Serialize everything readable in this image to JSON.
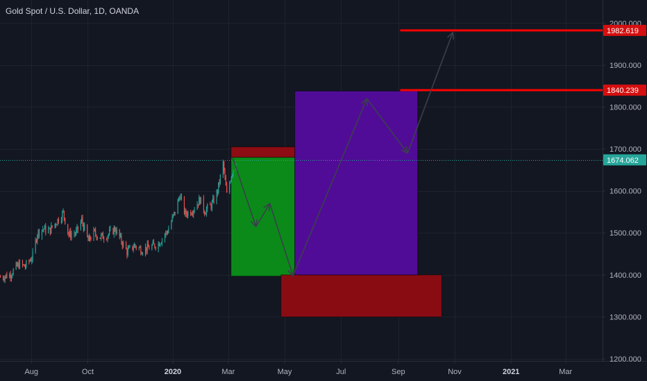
{
  "chart_data": {
    "type": "candlestick",
    "title": "Gold Spot / U.S. Dollar, 1D, OANDA",
    "ylim": [
      1195,
      2055
    ],
    "y_ticks": [
      {
        "value": 1200,
        "label": "1200.000"
      },
      {
        "value": 1300,
        "label": "1300.000"
      },
      {
        "value": 1400,
        "label": "1400.000"
      },
      {
        "value": 1500,
        "label": "1500.000"
      },
      {
        "value": 1600,
        "label": "1600.000"
      },
      {
        "value": 1700,
        "label": "1700.000"
      },
      {
        "value": 1800,
        "label": "1800.000"
      },
      {
        "value": 1900,
        "label": "1900.000"
      },
      {
        "value": 2000,
        "label": "2000.000"
      }
    ],
    "x_range": [
      "2019-06-28",
      "2021-04-10"
    ],
    "x_ticks": [
      {
        "date": "2019-08-01",
        "label": "Aug",
        "bold": false
      },
      {
        "date": "2019-10-01",
        "label": "Oct",
        "bold": false
      },
      {
        "date": "2020-01-01",
        "label": "2020",
        "bold": true
      },
      {
        "date": "2020-03-01",
        "label": "Mar",
        "bold": false
      },
      {
        "date": "2020-05-01",
        "label": "May",
        "bold": false
      },
      {
        "date": "2020-07-01",
        "label": "Jul",
        "bold": false
      },
      {
        "date": "2020-09-01",
        "label": "Sep",
        "bold": false
      },
      {
        "date": "2020-11-01",
        "label": "Nov",
        "bold": false
      },
      {
        "date": "2021-01-01",
        "label": "2021",
        "bold": true
      },
      {
        "date": "2021-03-01",
        "label": "Mar",
        "bold": false
      }
    ],
    "price_path": [
      [
        "2019-06-28",
        1395
      ],
      [
        "2019-07-08",
        1400
      ],
      [
        "2019-07-18",
        1425
      ],
      [
        "2019-07-25",
        1420
      ],
      [
        "2019-08-02",
        1445
      ],
      [
        "2019-08-07",
        1500
      ],
      [
        "2019-08-13",
        1510
      ],
      [
        "2019-08-20",
        1505
      ],
      [
        "2019-08-27",
        1525
      ],
      [
        "2019-09-04",
        1548
      ],
      [
        "2019-09-10",
        1495
      ],
      [
        "2019-09-18",
        1500
      ],
      [
        "2019-09-24",
        1530
      ],
      [
        "2019-10-01",
        1480
      ],
      [
        "2019-10-07",
        1500
      ],
      [
        "2019-10-14",
        1490
      ],
      [
        "2019-10-22",
        1495
      ],
      [
        "2019-10-30",
        1510
      ],
      [
        "2019-11-05",
        1485
      ],
      [
        "2019-11-12",
        1455
      ],
      [
        "2019-11-20",
        1470
      ],
      [
        "2019-11-28",
        1460
      ],
      [
        "2019-12-06",
        1465
      ],
      [
        "2019-12-16",
        1475
      ],
      [
        "2019-12-26",
        1505
      ],
      [
        "2020-01-03",
        1550
      ],
      [
        "2020-01-08",
        1590
      ],
      [
        "2020-01-14",
        1545
      ],
      [
        "2020-01-22",
        1555
      ],
      [
        "2020-01-30",
        1580
      ],
      [
        "2020-02-04",
        1552
      ],
      [
        "2020-02-12",
        1568
      ],
      [
        "2020-02-18",
        1600
      ],
      [
        "2020-02-24",
        1665
      ],
      [
        "2020-02-28",
        1590
      ],
      [
        "2020-03-04",
        1640
      ],
      [
        "2020-03-09",
        1672
      ]
    ],
    "current_price": {
      "value": 1674.062,
      "label": "1674.062",
      "date": "2020-03-09"
    },
    "horizontal_levels": [
      {
        "value": 1982.619,
        "label": "1982.619",
        "start": "2020-09-03"
      },
      {
        "value": 1840.239,
        "label": "1840.239",
        "start": "2020-09-03"
      }
    ],
    "zones": [
      {
        "name": "red-top-zone",
        "x0": "2020-03-04",
        "x1": "2020-05-12",
        "y0": 1680,
        "y1": 1705,
        "color": "#8e0c13"
      },
      {
        "name": "green-zone",
        "x0": "2020-03-04",
        "x1": "2020-05-12",
        "y0": 1397,
        "y1": 1680,
        "color": "#0b8a1a"
      },
      {
        "name": "red-bottom-zone",
        "x0": "2020-04-27",
        "x1": "2020-10-18",
        "y0": 1300,
        "y1": 1400,
        "color": "#8a0c13"
      },
      {
        "name": "purple-zone",
        "x0": "2020-05-12",
        "x1": "2020-09-22",
        "y0": 1400,
        "y1": 1838,
        "color": "#500c96"
      }
    ],
    "projection_path": [
      [
        "2020-03-06",
        1678
      ],
      [
        "2020-03-31",
        1515
      ],
      [
        "2020-04-15",
        1570
      ],
      [
        "2020-05-10",
        1398
      ],
      [
        "2020-07-29",
        1820
      ],
      [
        "2020-09-11",
        1690
      ],
      [
        "2020-10-30",
        1978
      ]
    ],
    "colors": {
      "background": "#131722",
      "grid": "#1e222d",
      "up": "#26a69a",
      "down": "#ef5350",
      "level_line": "#ff0000",
      "level_tag": "#d50f0f",
      "current_price": "#26a69a",
      "arrow": "#3b3f4c",
      "axis_text": "#b2b5be"
    }
  }
}
